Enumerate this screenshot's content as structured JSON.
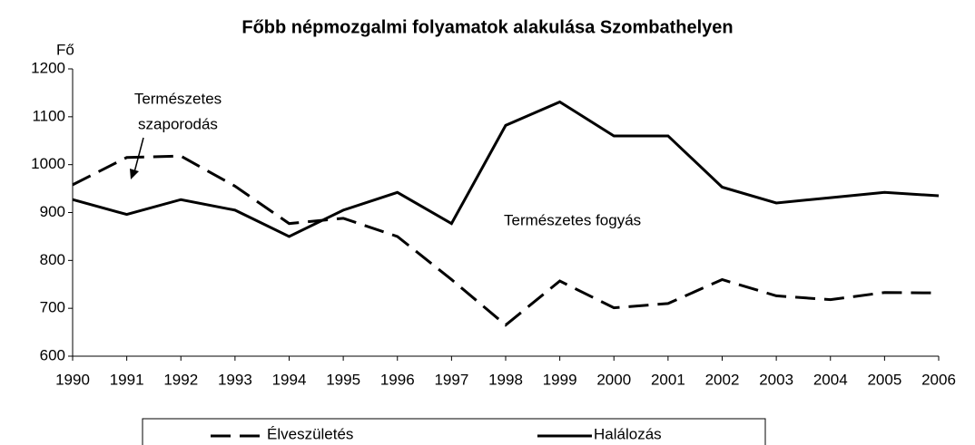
{
  "chart_data": {
    "type": "line",
    "title": "Főbb népmozgalmi folyamatok alakulása Szombathelyen",
    "y_label": "Fő",
    "categories": [
      "1990",
      "1991",
      "1992",
      "1993",
      "1994",
      "1995",
      "1996",
      "1997",
      "1998",
      "1999",
      "2000",
      "2001",
      "2002",
      "2003",
      "2004",
      "2005",
      "2006"
    ],
    "series": [
      {
        "name": "Élveszületés",
        "color": "#000000",
        "line_style": "dashed",
        "values": [
          958,
          1015,
          1018,
          955,
          877,
          888,
          850,
          760,
          665,
          757,
          701,
          710,
          760,
          726,
          718,
          733,
          732
        ]
      },
      {
        "name": "Halálozás",
        "color": "#000000",
        "line_style": "solid",
        "values": [
          927,
          896,
          927,
          905,
          850,
          905,
          942,
          877,
          1082,
          1131,
          1060,
          1060,
          953,
          920,
          931,
          942,
          935
        ]
      }
    ],
    "annotations": [
      [
        "Természetes",
        "szaporodás"
      ],
      [
        "Természetes fogyás"
      ]
    ],
    "ylim": [
      600,
      1200
    ],
    "yticks": [
      600,
      700,
      800,
      900,
      1000,
      1100,
      1200
    ],
    "grid": false,
    "legend": "bottom"
  }
}
